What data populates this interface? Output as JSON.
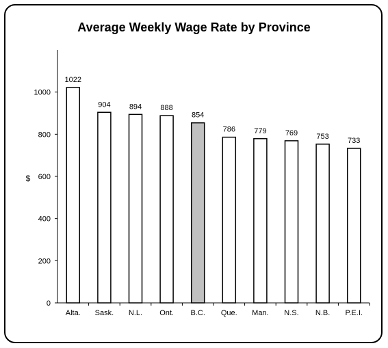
{
  "chart_data": {
    "type": "bar",
    "title": "Average Weekly Wage Rate by Province",
    "ylabel": "$",
    "xlabel": "",
    "categories": [
      "Alta.",
      "Sask.",
      "N.L.",
      "Ont.",
      "B.C.",
      "Que.",
      "Man.",
      "N.S.",
      "N.B.",
      "P.E.I."
    ],
    "values": [
      1022,
      904,
      894,
      888,
      854,
      786,
      779,
      769,
      753,
      733
    ],
    "highlight_category": "B.C.",
    "bar_color": "#ffffff",
    "highlight_color": "#c0c0c0",
    "ylim": [
      0,
      1200
    ],
    "yticks": [
      0,
      200,
      400,
      600,
      800,
      1000
    ],
    "grid": false,
    "legend": "none"
  }
}
